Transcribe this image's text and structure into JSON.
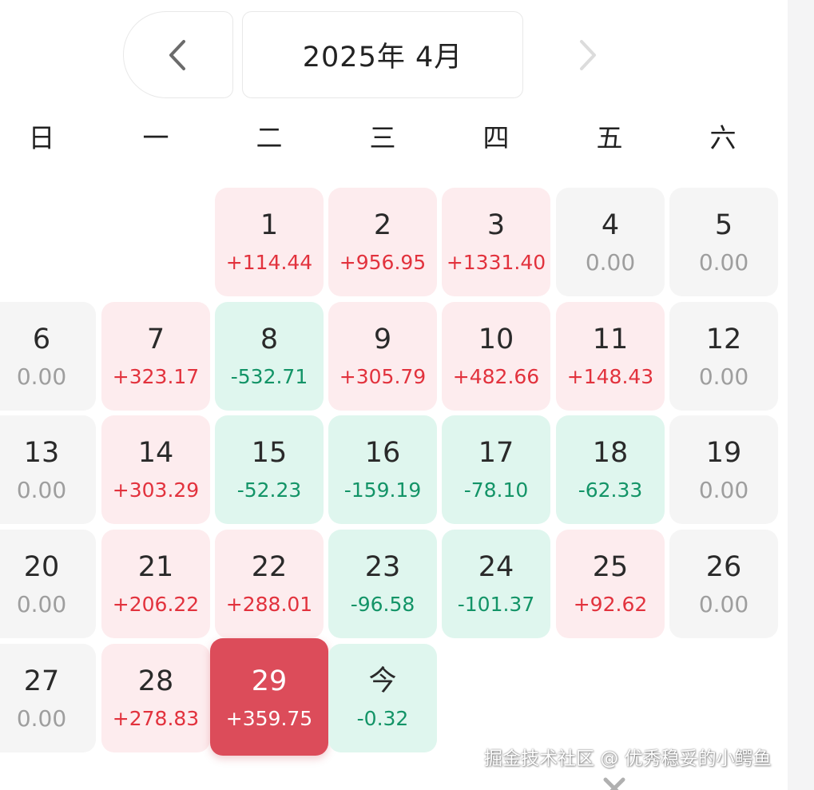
{
  "header": {
    "month_label": "2025年 4月"
  },
  "weekdays": [
    "日",
    "一",
    "二",
    "三",
    "四",
    "五",
    "六"
  ],
  "days": [
    {
      "label": "1",
      "value": "+114.44",
      "state": "pos"
    },
    {
      "label": "2",
      "value": "+956.95",
      "state": "pos"
    },
    {
      "label": "3",
      "value": "+1331.40",
      "state": "pos"
    },
    {
      "label": "4",
      "value": "0.00",
      "state": "zero"
    },
    {
      "label": "5",
      "value": "0.00",
      "state": "zero"
    },
    {
      "label": "6",
      "value": "0.00",
      "state": "zero"
    },
    {
      "label": "7",
      "value": "+323.17",
      "state": "pos"
    },
    {
      "label": "8",
      "value": "-532.71",
      "state": "neg"
    },
    {
      "label": "9",
      "value": "+305.79",
      "state": "pos"
    },
    {
      "label": "10",
      "value": "+482.66",
      "state": "pos"
    },
    {
      "label": "11",
      "value": "+148.43",
      "state": "pos"
    },
    {
      "label": "12",
      "value": "0.00",
      "state": "zero"
    },
    {
      "label": "13",
      "value": "0.00",
      "state": "zero"
    },
    {
      "label": "14",
      "value": "+303.29",
      "state": "pos"
    },
    {
      "label": "15",
      "value": "-52.23",
      "state": "neg"
    },
    {
      "label": "16",
      "value": "-159.19",
      "state": "neg"
    },
    {
      "label": "17",
      "value": "-78.10",
      "state": "neg"
    },
    {
      "label": "18",
      "value": "-62.33",
      "state": "neg"
    },
    {
      "label": "19",
      "value": "0.00",
      "state": "zero"
    },
    {
      "label": "20",
      "value": "0.00",
      "state": "zero"
    },
    {
      "label": "21",
      "value": "+206.22",
      "state": "pos"
    },
    {
      "label": "22",
      "value": "+288.01",
      "state": "pos"
    },
    {
      "label": "23",
      "value": "-96.58",
      "state": "neg"
    },
    {
      "label": "24",
      "value": "-101.37",
      "state": "neg"
    },
    {
      "label": "25",
      "value": "+92.62",
      "state": "pos"
    },
    {
      "label": "26",
      "value": "0.00",
      "state": "zero"
    },
    {
      "label": "27",
      "value": "0.00",
      "state": "zero"
    },
    {
      "label": "28",
      "value": "+278.83",
      "state": "pos"
    },
    {
      "label": "29",
      "value": "+359.75",
      "state": "sel"
    },
    {
      "label": "今",
      "value": "-0.32",
      "state": "neg"
    }
  ],
  "watermark": "掘金技术社区 @ 优秀稳妥的小鳄鱼",
  "colors": {
    "positive": "#e2323d",
    "negative": "#139467",
    "zero": "#9e9e9e",
    "selected": "#dc4c5a",
    "positive_bg": "#fdecee",
    "negative_bg": "#dff6ee",
    "zero_bg": "#f5f5f5"
  }
}
